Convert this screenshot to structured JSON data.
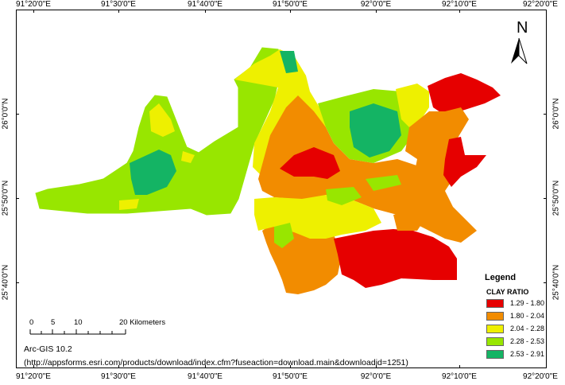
{
  "graticule": {
    "top_labels": [
      "91°20'0\"E",
      "91°30'0\"E",
      "91°40'0\"E",
      "91°50'0\"E",
      "92°0'0\"E",
      "92°10'0\"E",
      "92°20'0\"E"
    ],
    "bottom_labels": [
      "91°20'0\"E",
      "91°30'0\"E",
      "91°40'0\"E",
      "91°50'0\"E",
      "92°0'0\"E",
      "92°10'0\"E",
      "92°20'0\"E"
    ],
    "left_labels": [
      "26°0'0\"N",
      "25°50'0\"N",
      "25°40'0\"N"
    ],
    "right_labels": [
      "26°0'0\"N",
      "25°50'0\"N",
      "25°40'0\"N"
    ]
  },
  "north_arrow": {
    "label": "N",
    "icon": "north-arrow-icon"
  },
  "legend": {
    "title": "Legend",
    "subtitle": "CLAY RATIO",
    "classes": [
      {
        "label": "1.29 - 1.80",
        "color": "#e60000"
      },
      {
        "label": "1.80 - 2.04",
        "color": "#f28c00"
      },
      {
        "label": "2.04 - 2.28",
        "color": "#eef000"
      },
      {
        "label": "2.28 - 2.53",
        "color": "#98e600"
      },
      {
        "label": "2.53 - 2.91",
        "color": "#14b464"
      }
    ]
  },
  "scale_bar": {
    "ticks": [
      "0",
      "5",
      "10",
      "20 Kilometers"
    ]
  },
  "credit": {
    "software": "Arc-GIS 10.2",
    "url": "(http://appsforms.esri.com/products/download/index.cfm?fuseaction=download.main&downloadid=1251)"
  }
}
